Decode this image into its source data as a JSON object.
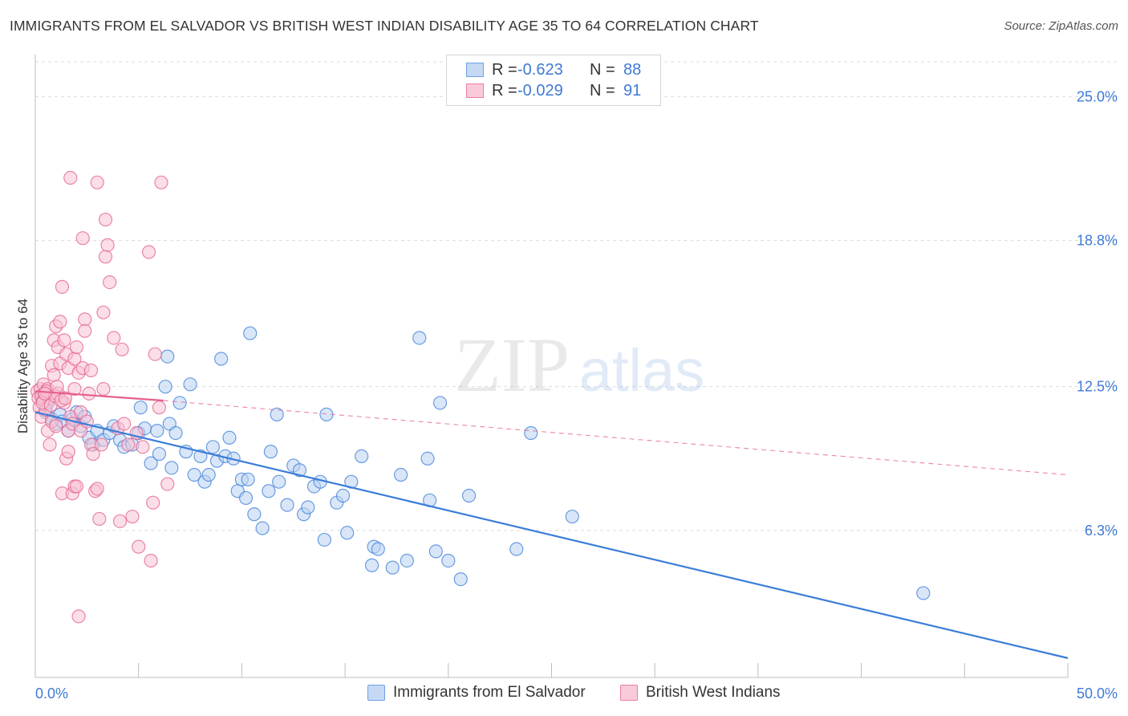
{
  "header": {
    "title": "IMMIGRANTS FROM EL SALVADOR VS BRITISH WEST INDIAN DISABILITY AGE 35 TO 64 CORRELATION CHART",
    "source": "Source: ZipAtlas.com"
  },
  "watermark": {
    "zip": "ZIP",
    "atlas": "atlas"
  },
  "legend": {
    "rows": [
      {
        "r_label": "R =",
        "r_value": "-0.623",
        "n_label": "N =",
        "n_value": "88",
        "color": "#6fa0e6",
        "fill": "#c5d9f5"
      },
      {
        "r_label": "R =",
        "r_value": "-0.029",
        "n_label": "N =",
        "n_value": "91",
        "color": "#ea7fa1",
        "fill": "#f9cad9"
      }
    ]
  },
  "bottom_legend": {
    "items": [
      {
        "label": "Immigrants from El Salvador",
        "color": "#6fa0e6",
        "fill": "#c5d9f5"
      },
      {
        "label": "British West Indians",
        "color": "#ea7fa1",
        "fill": "#f9cad9"
      }
    ]
  },
  "chart_data": {
    "type": "scatter",
    "title": "IMMIGRANTS FROM EL SALVADOR VS BRITISH WEST INDIAN DISABILITY AGE 35 TO 64 CORRELATION CHART",
    "xlabel": "",
    "ylabel": "Disability Age 35 to 64",
    "xlim": [
      0,
      50
    ],
    "ylim": [
      0,
      26.5
    ],
    "x_tick_labels": [
      "0.0%",
      "50.0%"
    ],
    "y_ticks": [
      6.3,
      12.5,
      18.8,
      25.0
    ],
    "y_tick_labels": [
      "6.3%",
      "12.5%",
      "18.8%",
      "25.0%"
    ],
    "grid": "horizontal dashed",
    "legend_position": "top-center",
    "series": [
      {
        "name": "Immigrants from El Salvador",
        "color": "#3b7dd8",
        "fill": "#b9d1f3",
        "trend": {
          "x": [
            0,
            50
          ],
          "y": [
            11.4,
            0.8
          ],
          "style": "solid"
        },
        "points": [
          [
            0.3,
            12.0
          ],
          [
            0.5,
            11.4
          ],
          [
            0.6,
            11.8
          ],
          [
            0.8,
            11.1
          ],
          [
            1.0,
            10.9
          ],
          [
            1.2,
            11.3
          ],
          [
            1.3,
            11.0
          ],
          [
            1.6,
            10.6
          ],
          [
            1.8,
            11.1
          ],
          [
            2.0,
            11.4
          ],
          [
            2.2,
            10.8
          ],
          [
            2.4,
            11.2
          ],
          [
            2.6,
            10.3
          ],
          [
            2.8,
            10.0
          ],
          [
            3.0,
            10.6
          ],
          [
            3.3,
            10.2
          ],
          [
            3.6,
            10.5
          ],
          [
            3.8,
            10.8
          ],
          [
            4.1,
            10.2
          ],
          [
            4.3,
            9.9
          ],
          [
            4.7,
            10.0
          ],
          [
            5.0,
            10.5
          ],
          [
            5.1,
            11.6
          ],
          [
            5.3,
            10.7
          ],
          [
            5.6,
            9.2
          ],
          [
            5.9,
            10.6
          ],
          [
            6.0,
            9.6
          ],
          [
            6.3,
            12.5
          ],
          [
            6.4,
            13.8
          ],
          [
            6.5,
            10.9
          ],
          [
            6.6,
            9.0
          ],
          [
            6.8,
            10.5
          ],
          [
            7.0,
            11.8
          ],
          [
            7.3,
            9.7
          ],
          [
            7.5,
            12.6
          ],
          [
            7.7,
            8.7
          ],
          [
            8.0,
            9.5
          ],
          [
            8.2,
            8.4
          ],
          [
            8.4,
            8.7
          ],
          [
            8.6,
            9.9
          ],
          [
            8.8,
            9.3
          ],
          [
            9.0,
            13.7
          ],
          [
            9.2,
            9.5
          ],
          [
            9.4,
            10.3
          ],
          [
            9.6,
            9.4
          ],
          [
            9.8,
            8.0
          ],
          [
            10.0,
            8.5
          ],
          [
            10.2,
            7.7
          ],
          [
            10.3,
            8.5
          ],
          [
            10.4,
            14.8
          ],
          [
            10.6,
            7.0
          ],
          [
            11.0,
            6.4
          ],
          [
            11.3,
            8.0
          ],
          [
            11.4,
            9.7
          ],
          [
            11.7,
            11.3
          ],
          [
            11.8,
            8.4
          ],
          [
            12.2,
            7.4
          ],
          [
            12.5,
            9.1
          ],
          [
            12.8,
            8.9
          ],
          [
            13.0,
            7.0
          ],
          [
            13.2,
            7.3
          ],
          [
            13.5,
            8.2
          ],
          [
            13.8,
            8.4
          ],
          [
            14.0,
            5.9
          ],
          [
            14.1,
            11.3
          ],
          [
            14.6,
            7.5
          ],
          [
            14.9,
            7.8
          ],
          [
            15.1,
            6.2
          ],
          [
            15.3,
            8.4
          ],
          [
            15.8,
            9.5
          ],
          [
            16.3,
            4.8
          ],
          [
            16.4,
            5.6
          ],
          [
            16.6,
            5.5
          ],
          [
            17.3,
            4.7
          ],
          [
            17.7,
            8.7
          ],
          [
            18.0,
            5.0
          ],
          [
            18.6,
            14.6
          ],
          [
            19.0,
            9.4
          ],
          [
            19.1,
            7.6
          ],
          [
            19.4,
            5.4
          ],
          [
            19.6,
            11.8
          ],
          [
            20.0,
            5.0
          ],
          [
            20.6,
            4.2
          ],
          [
            21.0,
            7.8
          ],
          [
            23.3,
            5.5
          ],
          [
            24.0,
            10.5
          ],
          [
            26.0,
            6.9
          ],
          [
            43.0,
            3.6
          ]
        ]
      },
      {
        "name": "British West Indians",
        "color": "#e4608c",
        "fill": "#f7c3d4",
        "trend": {
          "x": [
            0,
            6.2
          ],
          "y": [
            12.3,
            11.9
          ],
          "style": "solid",
          "extension": {
            "x": [
              6.2,
              50
            ],
            "y": [
              11.9,
              8.7
            ],
            "style": "dashed"
          }
        },
        "points": [
          [
            0.1,
            12.3
          ],
          [
            0.15,
            12.0
          ],
          [
            0.2,
            11.6
          ],
          [
            0.25,
            12.4
          ],
          [
            0.3,
            11.2
          ],
          [
            0.3,
            12.1
          ],
          [
            0.4,
            12.6
          ],
          [
            0.4,
            11.9
          ],
          [
            0.5,
            12.2
          ],
          [
            0.5,
            11.5
          ],
          [
            0.6,
            12.4
          ],
          [
            0.6,
            10.6
          ],
          [
            0.7,
            12.0
          ],
          [
            0.7,
            10.0
          ],
          [
            0.8,
            11.0
          ],
          [
            0.8,
            13.4
          ],
          [
            0.9,
            13.0
          ],
          [
            0.9,
            14.5
          ],
          [
            1.0,
            15.1
          ],
          [
            1.0,
            10.8
          ],
          [
            1.1,
            14.2
          ],
          [
            1.1,
            12.2
          ],
          [
            1.2,
            15.3
          ],
          [
            1.2,
            13.5
          ],
          [
            1.3,
            16.8
          ],
          [
            1.3,
            7.9
          ],
          [
            1.4,
            14.5
          ],
          [
            1.4,
            11.8
          ],
          [
            1.5,
            13.9
          ],
          [
            1.5,
            9.4
          ],
          [
            1.6,
            9.7
          ],
          [
            1.6,
            10.6
          ],
          [
            1.6,
            13.3
          ],
          [
            1.7,
            21.5
          ],
          [
            1.7,
            11.2
          ],
          [
            1.8,
            7.9
          ],
          [
            1.8,
            10.9
          ],
          [
            1.9,
            13.7
          ],
          [
            1.9,
            8.2
          ],
          [
            1.9,
            12.4
          ],
          [
            2.0,
            14.2
          ],
          [
            2.0,
            8.2
          ],
          [
            2.1,
            13.1
          ],
          [
            2.1,
            2.6
          ],
          [
            2.2,
            11.4
          ],
          [
            2.2,
            10.6
          ],
          [
            2.3,
            18.9
          ],
          [
            2.3,
            13.3
          ],
          [
            2.4,
            15.4
          ],
          [
            2.4,
            14.9
          ],
          [
            2.5,
            11.0
          ],
          [
            2.6,
            12.2
          ],
          [
            2.7,
            13.2
          ],
          [
            2.7,
            10.0
          ],
          [
            2.8,
            9.6
          ],
          [
            2.9,
            8.0
          ],
          [
            3.0,
            21.3
          ],
          [
            3.0,
            8.1
          ],
          [
            3.1,
            6.8
          ],
          [
            3.2,
            10.0
          ],
          [
            3.3,
            15.7
          ],
          [
            3.3,
            12.4
          ],
          [
            3.4,
            19.7
          ],
          [
            3.4,
            18.1
          ],
          [
            3.5,
            18.6
          ],
          [
            3.6,
            17.0
          ],
          [
            3.8,
            14.6
          ],
          [
            4.0,
            10.7
          ],
          [
            4.1,
            6.7
          ],
          [
            4.2,
            14.1
          ],
          [
            4.3,
            10.9
          ],
          [
            4.5,
            10.0
          ],
          [
            4.7,
            6.9
          ],
          [
            4.9,
            10.5
          ],
          [
            5.0,
            5.6
          ],
          [
            5.2,
            9.9
          ],
          [
            5.5,
            18.3
          ],
          [
            5.6,
            5.0
          ],
          [
            5.7,
            7.5
          ],
          [
            5.8,
            13.9
          ],
          [
            6.0,
            11.6
          ],
          [
            6.1,
            21.3
          ],
          [
            6.4,
            8.3
          ],
          [
            0.35,
            11.8
          ],
          [
            0.55,
            12.3
          ],
          [
            0.75,
            11.7
          ],
          [
            0.95,
            12.1
          ],
          [
            1.05,
            12.5
          ],
          [
            1.25,
            11.9
          ],
          [
            1.45,
            12.0
          ],
          [
            0.45,
            12.2
          ]
        ]
      }
    ]
  }
}
